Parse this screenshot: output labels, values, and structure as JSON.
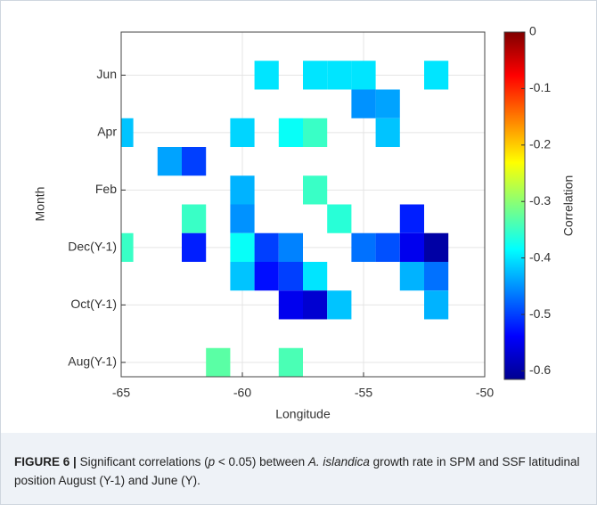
{
  "chart_data": {
    "type": "heatmap",
    "xlabel": "Longitude",
    "ylabel": "Month",
    "colorbar_label": "Correlation",
    "xlim": [
      -65,
      -50
    ],
    "xticks": [
      -65,
      -60,
      -55,
      -50
    ],
    "categories": [
      "Aug(Y-1)",
      null,
      "Oct(Y-1)",
      null,
      "Dec(Y-1)",
      null,
      "Feb",
      null,
      "Apr",
      null,
      "Jun",
      null
    ],
    "x": [
      -59,
      -57,
      -56,
      -55,
      -52,
      -55,
      -54,
      -65,
      -60,
      -58,
      -57,
      -54,
      -63,
      -62,
      -60,
      -57,
      -62,
      -60,
      -56,
      -53,
      -65,
      -62,
      -60,
      -59,
      -58,
      -55,
      -54,
      -53,
      -52,
      -60,
      -59,
      -58,
      -57,
      -53,
      -52,
      -58,
      -57,
      -56,
      -52,
      -61,
      -58
    ],
    "y": [
      10,
      10,
      10,
      10,
      10,
      9,
      9,
      8,
      8,
      8,
      8,
      8,
      7,
      7,
      6,
      6,
      5,
      5,
      5,
      5,
      4,
      4,
      4,
      4,
      4,
      4,
      4,
      4,
      4,
      3,
      3,
      3,
      3,
      3,
      3,
      2,
      2,
      2,
      2,
      0,
      0
    ],
    "values": [
      -0.4,
      -0.4,
      -0.4,
      -0.4,
      -0.4,
      -0.45,
      -0.44,
      -0.42,
      -0.41,
      -0.38,
      -0.35,
      -0.42,
      -0.44,
      -0.5,
      -0.43,
      -0.35,
      -0.35,
      -0.45,
      -0.36,
      -0.52,
      -0.35,
      -0.52,
      -0.38,
      -0.5,
      -0.46,
      -0.47,
      -0.49,
      -0.55,
      -0.6,
      -0.42,
      -0.53,
      -0.5,
      -0.4,
      -0.43,
      -0.47,
      -0.55,
      -0.57,
      -0.42,
      -0.43,
      -0.33,
      -0.34
    ],
    "clim": [
      -0.615,
      0
    ],
    "cticks": [
      0,
      -0.1,
      -0.2,
      -0.3,
      -0.4,
      -0.5,
      -0.6
    ],
    "colormap": [
      "#00008f",
      "#0000ff",
      "#00ffff",
      "#ffff00",
      "#ff0000",
      "#800000"
    ],
    "grid": true
  },
  "caption": {
    "label": "FIGURE 6 |",
    "parts": [
      "Significant correlations (",
      "p",
      " < 0.05) between ",
      "A. islandica",
      " growth rate in SPM and SSF latitudinal position August (Y-1) and June (Y)."
    ]
  }
}
